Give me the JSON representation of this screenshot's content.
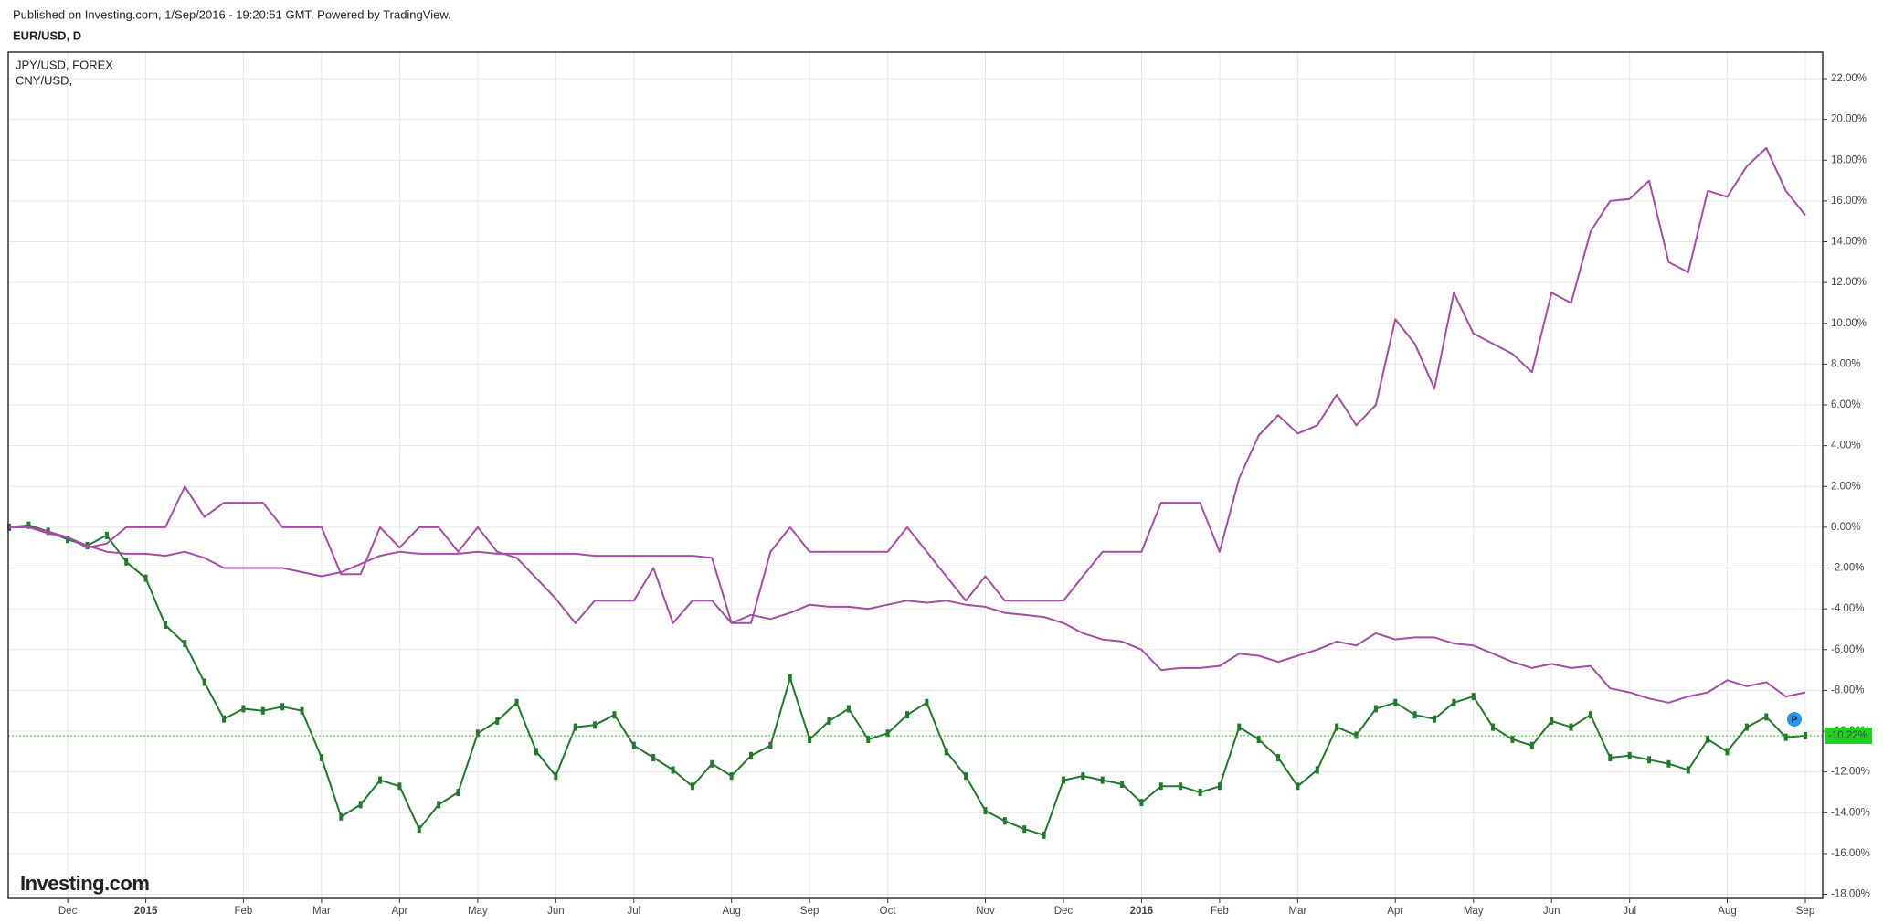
{
  "chart_data": {
    "type": "line",
    "title": "Published on Investing.com, 1/Sep/2016 - 19:20:51 GMT, Powered by TradingView.",
    "watermark": "Investing.com",
    "marker": "P",
    "grid": true,
    "categories": [
      null,
      null,
      null,
      "Dec",
      null,
      null,
      null,
      "2015",
      null,
      null,
      null,
      null,
      "Feb",
      null,
      null,
      null,
      "Mar",
      null,
      null,
      null,
      "Apr",
      null,
      null,
      null,
      "May",
      null,
      null,
      null,
      "Jun",
      null,
      null,
      null,
      "Jul",
      null,
      null,
      null,
      null,
      "Aug",
      null,
      null,
      null,
      "Sep",
      null,
      null,
      null,
      "Oct",
      null,
      null,
      null,
      null,
      "Nov",
      null,
      null,
      null,
      "Dec",
      null,
      null,
      null,
      "2016",
      null,
      null,
      null,
      "Feb",
      null,
      null,
      null,
      "Mar",
      null,
      null,
      null,
      null,
      "Apr",
      null,
      null,
      null,
      "May",
      null,
      null,
      null,
      "Jun",
      null,
      null,
      null,
      "Jul",
      null,
      null,
      null,
      null,
      "Aug",
      null,
      null,
      null,
      "Sep"
    ],
    "ylim": [
      -18.2,
      23.3
    ],
    "yticks": [
      {
        "value": -18,
        "label": "-18.00%"
      },
      {
        "value": -16,
        "label": "-16.00%"
      },
      {
        "value": -14,
        "label": "-14.00%"
      },
      {
        "value": -12,
        "label": "-12.00%"
      },
      {
        "value": -10,
        "label": "-10.00%"
      },
      {
        "value": -8,
        "label": "-8.00%"
      },
      {
        "value": -6,
        "label": "-6.00%"
      },
      {
        "value": -4,
        "label": "-4.00%"
      },
      {
        "value": -2,
        "label": "-2.00%"
      },
      {
        "value": 0,
        "label": "0.00%"
      },
      {
        "value": 2,
        "label": "2.00%"
      },
      {
        "value": 4,
        "label": "4.00%"
      },
      {
        "value": 6,
        "label": "6.00%"
      },
      {
        "value": 8,
        "label": "8.00%"
      },
      {
        "value": 10,
        "label": "10.00%"
      },
      {
        "value": 12,
        "label": "12.00%"
      },
      {
        "value": 14,
        "label": "14.00%"
      },
      {
        "value": 16,
        "label": "16.00%"
      },
      {
        "value": 18,
        "label": "18.00%"
      },
      {
        "value": 20,
        "label": "20.00%"
      },
      {
        "value": 22,
        "label": "22.00%"
      }
    ],
    "series": [
      {
        "name": "EUR/USD, D",
        "color": "#1f7a2a",
        "values": [
          0,
          0.1,
          -0.2,
          -0.6,
          -0.9,
          -0.4,
          -1.7,
          -2.5,
          -4.8,
          -5.7,
          -7.6,
          -9.4,
          -8.9,
          -9.0,
          -8.8,
          -9.0,
          -11.3,
          -14.2,
          -13.6,
          -12.4,
          -12.7,
          -14.8,
          -13.6,
          -13.0,
          -10.1,
          -9.5,
          -8.6,
          -11.0,
          -12.2,
          -9.8,
          -9.7,
          -9.2,
          -10.7,
          -11.3,
          -11.9,
          -12.7,
          -11.6,
          -12.2,
          -11.2,
          -10.7,
          -7.4,
          -10.4,
          -9.5,
          -8.9,
          -10.4,
          -10.1,
          -9.2,
          -8.6,
          -11.0,
          -12.2,
          -13.9,
          -14.4,
          -14.8,
          -15.1,
          -12.4,
          -12.2,
          -12.4,
          -12.6,
          -13.5,
          -12.7,
          -12.7,
          -13.0,
          -12.7,
          -9.8,
          -10.4,
          -11.3,
          -12.7,
          -11.9,
          -9.8,
          -10.2,
          -8.9,
          -8.6,
          -9.2,
          -9.4,
          -8.6,
          -8.3,
          -9.8,
          -10.4,
          -10.7,
          -9.5,
          -9.8,
          -9.2,
          -11.3,
          -11.2,
          -11.4,
          -11.6,
          -11.9,
          -10.4,
          -11.0,
          -9.8,
          -9.3,
          -10.3,
          -10.22
        ],
        "value_labels": [
          null,
          null,
          null,
          null,
          null,
          null,
          null,
          null,
          null,
          null,
          null,
          null,
          null,
          null,
          null,
          null,
          null,
          null,
          null,
          null,
          null,
          null,
          null,
          null,
          null,
          null,
          null,
          null,
          null,
          null,
          null,
          null,
          null,
          null,
          null,
          null,
          null,
          null,
          null,
          null,
          null,
          null,
          null,
          null,
          null,
          null,
          null,
          null,
          null,
          null,
          null,
          null,
          null,
          null,
          null,
          null,
          null,
          null,
          null,
          null,
          null,
          null,
          null,
          null,
          null,
          null,
          null,
          null,
          null,
          null,
          null,
          null,
          null,
          null,
          null,
          null,
          null,
          null,
          null,
          null,
          null,
          null,
          null,
          null,
          null,
          null,
          null,
          null,
          null,
          null,
          null,
          null,
          "-10.22%"
        ]
      },
      {
        "name": "JPY/USD, FOREX",
        "color": "#a64ca6",
        "values": [
          0,
          0,
          -0.2,
          -0.5,
          -1.0,
          -0.8,
          0,
          0,
          0,
          2.0,
          0.5,
          1.2,
          1.2,
          1.2,
          0,
          0,
          0,
          -2.3,
          -2.3,
          0,
          -1.0,
          0,
          0,
          -1.2,
          0,
          -1.2,
          -1.5,
          -2.5,
          -3.5,
          -4.7,
          -3.6,
          -3.6,
          -3.6,
          -2.0,
          -4.7,
          -3.6,
          -3.6,
          -4.7,
          -4.7,
          -1.2,
          0,
          -1.2,
          -1.2,
          -1.2,
          -1.2,
          -1.2,
          0,
          -1.2,
          -2.4,
          -3.6,
          -2.4,
          -3.6,
          -3.6,
          -3.6,
          -3.6,
          -2.4,
          -1.2,
          -1.2,
          -1.2,
          1.2,
          1.2,
          1.2,
          -1.2,
          2.4,
          4.5,
          5.5,
          4.6,
          5.0,
          6.5,
          5.0,
          6.0,
          10.2,
          9.0,
          6.8,
          11.5,
          9.5,
          9.0,
          8.5,
          7.6,
          11.5,
          11.0,
          14.5,
          16.0,
          16.1,
          17.0,
          13.0,
          12.5,
          16.5,
          16.2,
          17.7,
          18.6,
          16.5,
          15.3
        ]
      },
      {
        "name": "CNY/USD,",
        "color": "#a64ca6",
        "values": [
          0,
          0,
          -0.3,
          -0.5,
          -0.9,
          -1.2,
          -1.3,
          -1.3,
          -1.4,
          -1.2,
          -1.5,
          -2.0,
          -2.0,
          -2.0,
          -2.0,
          -2.2,
          -2.4,
          -2.2,
          -1.8,
          -1.4,
          -1.2,
          -1.3,
          -1.3,
          -1.3,
          -1.2,
          -1.3,
          -1.3,
          -1.3,
          -1.3,
          -1.3,
          -1.4,
          -1.4,
          -1.4,
          -1.4,
          -1.4,
          -1.4,
          -1.5,
          -4.7,
          -4.3,
          -4.5,
          -4.2,
          -3.8,
          -3.9,
          -3.9,
          -4.0,
          -3.8,
          -3.6,
          -3.7,
          -3.6,
          -3.8,
          -3.9,
          -4.2,
          -4.3,
          -4.4,
          -4.7,
          -5.2,
          -5.5,
          -5.6,
          -6.0,
          -7.0,
          -6.9,
          -6.9,
          -6.8,
          -6.2,
          -6.3,
          -6.6,
          -6.3,
          -6.0,
          -5.6,
          -5.8,
          -5.2,
          -5.5,
          -5.4,
          -5.4,
          -5.7,
          -5.8,
          -6.2,
          -6.6,
          -6.9,
          -6.7,
          -6.9,
          -6.8,
          -7.9,
          -8.1,
          -8.4,
          -8.6,
          -8.3,
          -8.1,
          -7.5,
          -7.8,
          -7.6,
          -8.3,
          -8.1
        ]
      }
    ]
  }
}
